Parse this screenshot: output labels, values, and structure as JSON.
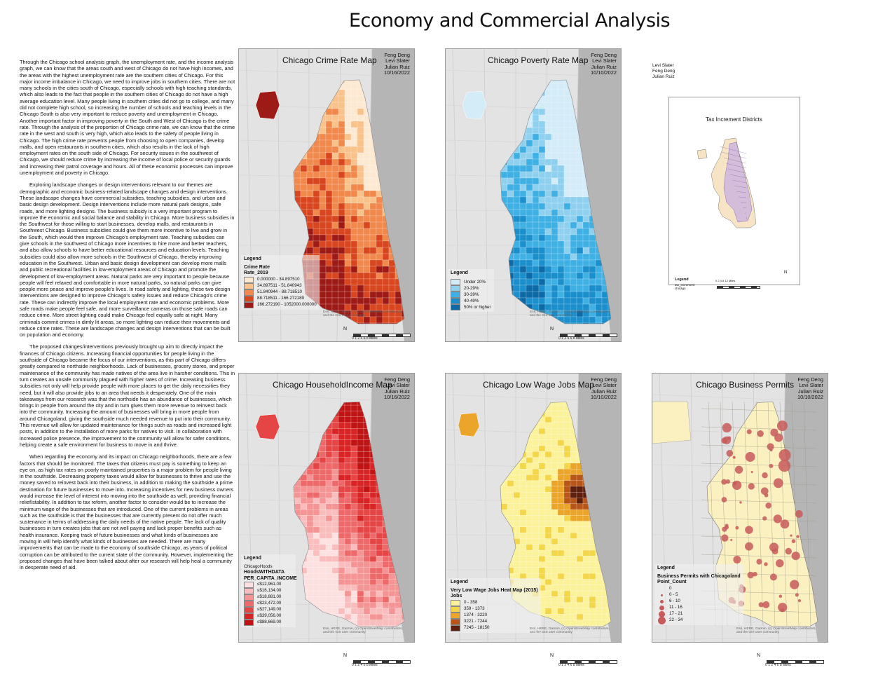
{
  "title": "Economy and Commercial Analysis",
  "essay": [
    "Through the Chicago school analysis graph, the unemployment rate, and the income analysis graph, we can know that the areas south and west of Chicago do not have high incomes, and the areas with the highest unemployment rate are the southern cities of Chicago. For this major income imbalance in Chicago, we need to improve jobs in southern cities. There are not many schools in the cities south of Chicago, especially schools with high teaching standards, which also leads to the fact that people in the southern cities of Chicago do not have a high average education level. Many people living in southern cities did not go to college, and many did not complete high school, so increasing the number of schools and teaching levels in the Chicago South is also very important to reduce poverty and unemployment in Chicago. Another important factor in improving poverty in the South and West of Chicago is the crime rate. Through the analysis of the proportion of Chicago crime rate, we can know that the crime rate in the west and south is very high, which also leads to the safety of people living in Chicago. The high crime rate prevents people from choosing to open companies, develop malls, and open restaurants in southern cities, which also results in the lack of high employment rates on the south side of Chicago. For security issues in the southwest of Chicago, we should reduce crime by increasing the income of local police or security guards and increasing their patrol coverage and hours. All of these economic processes can improve unemployment and poverty in Chicago.",
    "Exploring landscape changes or design interventions relevant to our themes are demographic and economic business-related landscape changes and design interventions. These landscape changes have commercial subsidies, teaching subsidies, and urban and basic design development. Design interventions include more natural park designs, safe roads, and more lighting designs. The business subsidy is a very important program to improve the economic and social balance and stability in Chicago. More business subsidies in the Southwest for those willing to start businesses, develop malls, and restaurants in Southwest Chicago. Business subsidies could give them more incentive to live and grow in the South, which would then improve Chicago's employment rate. Teaching subsidies can give schools in the southwest of Chicago more incentives to hire more and better teachers, and also allow schools to have better educational resources and education levels. Teaching subsidies could also allow more schools in the Southwest of Chicago, thereby improving education in the Southwest. Urban and basic design development can develop more malls and public recreational facilities in low-employment areas of Chicago and promote the development of low-employment areas. Natural parks are very important to people because people will feel relaxed and comfortable in more natural parks, so natural parks can give people more peace and improve people's lives. In road safety and lighting, these two design interventions are designed to improve Chicago's safety issues and reduce Chicago's crime rate. These can indirectly improve the local employment rate and economic problems. More safe roads make people feel safe, and more surveillance cameras on those safe roads can reduce crime. More street lighting could make Chicago feel equally safe at night. Many criminals commit crimes in dimly lit areas, so more lighting can reduce their movements and reduce crime rates. These are landscape changes and design interventions that can be built on population and economy.",
    "The proposed changes/interventions previously brought up aim to directly impact the finances of Chicago citizens. Increasing financial opportunities for people living in the southside of Chicago became the focus of our interventions, as this part of Chicago differs greatly compared to northside neighborhoods. Lack of businesses, grocery stores, and proper maintenance of the community has made natives of the area live in harsher conditions. This in turn creates an unsafe community plagued with higher rates of crime. Increasing business subsidies not only will help provide people with more places to get the daily necessities they need, but it will also provide jobs to an area that needs it desperately. One of the main takeaways from our research was that the northside has an abundance of businesses, which brings in people from around the city and in turn gives them more revenue to reinvest back into the community. Increasing the amount of businesses will bring in more people from around Chicagoland, giving the southside much needed revenue to put into their community. This revenue will allow for updated maintenance for things such as roads and increased light posts, in addition to the installation of more parks for natives to visit. In collaboration with increased police presence, the improvement to the community will allow for safer conditions, helping create a safe environment for business to move in and thrive.",
    "When regarding the economy and its impact on Chicago neighborhoods, there are a few factors that should be monitored. The taxes that citizens must pay is something to keep an eye on, as high tax rates on poorly maintained properties is a major problem for people living in the southside. Decreasing property taxes would allow for businesses to thrive and use the money saved to reinvest back into their business, in addition to making the southside a prime destination for future businesses to move into. Increasing incentives for new business owners would increase the level of interest into moving into the southside as well, providing financial relief/stability. In addition to tax reform, another factor to consider would be to increase the minimum wage of the businesses that are introduced. One of the current problems in areas such as the southside is that the businesses that are currently present do not offer much sustenance in terms of addressing the daily needs of the native people. The lack of quality businesses in turn creates jobs that are not well paying and lack proper benefits such as health insurance. Keeping track of future businesses and what kinds of businesses are moving in will help identify what kinds of businesses are needed. There are many improvements that can be made to the economy of southside Chicago, as years of political corruption can be attributed to the current state of the community. However, implementing the proposed changes that have been talked about after our research will help heal a community in desperate need of aid."
  ],
  "side_authors": [
    "Levi Slater",
    "Feng Deng",
    "Julian Ruiz"
  ],
  "maps": {
    "crime": {
      "title": "Chicago Crime Rate Map",
      "credits": [
        "Feng Deng",
        "Levi Slater",
        "Julian Ruiz",
        "10/16/2022"
      ],
      "legend_title": "Legend",
      "legend_subtitle": "Crime Rate",
      "legend_field": "Rate_2019",
      "classes": [
        {
          "label": "0.000000 - 34.897510",
          "color": "#fde9d2"
        },
        {
          "label": "34.897511 - 51.840943",
          "color": "#f9c28a"
        },
        {
          "label": "51.840944 - 88.718510",
          "color": "#f1894d"
        },
        {
          "label": "88.718511 - 166.272189",
          "color": "#d8461f"
        },
        {
          "label": "166.272190 - 1052000.000000",
          "color": "#9e1a16"
        }
      ],
      "attribution": "Esri, HERE, Garmin, (c) OpenStreetMap contributors, and the GIS user community"
    },
    "poverty": {
      "title": "Chicago Poverty Rate Map",
      "credits": [
        "Feng Deng",
        "Levi Slater",
        "Julian Ruiz",
        "10/10/2022"
      ],
      "legend_title": "Legend",
      "classes": [
        {
          "label": "Under 20%",
          "color": "#d3ecf8"
        },
        {
          "label": "20-29%",
          "color": "#8fd0ef"
        },
        {
          "label": "30-39%",
          "color": "#3fb0e3"
        },
        {
          "label": "40-49%",
          "color": "#1a8fcc"
        },
        {
          "label": "50% or higher",
          "color": "#0d6aa6"
        }
      ],
      "attribution": "Esri, HERE, Garmin, (c) OpenStreetMap contributors, and the GIS user community"
    },
    "tid": {
      "title": "Tax Increment Districts",
      "legend_title": "Legend",
      "classes": [
        {
          "label": "tax_increment",
          "color": "#c9b3e0"
        },
        {
          "label": "chicago",
          "color": "#f7e4c4"
        }
      ],
      "scale_labels": "0  2  4  8  12 Miles",
      "north": "N"
    },
    "income": {
      "title": "Chicago HouseholdIncome Map",
      "credits": [
        "Feng Deng",
        "Levi Slater",
        "Julian Ruiz",
        "10/16/2022"
      ],
      "legend_title": "Legend",
      "legend_subtitle": "ChicagoHoods",
      "legend_field": "HoodsWITHDATA PER_CAPITA_INCOME",
      "classes": [
        {
          "label": "≤$12,961.00",
          "color": "#fde0e0"
        },
        {
          "label": "≤$16,134.00",
          "color": "#f9bdbd"
        },
        {
          "label": "≤$18,881.00",
          "color": "#f49494"
        },
        {
          "label": "≤$23,472.00",
          "color": "#ee6a6a"
        },
        {
          "label": "≤$27,149.00",
          "color": "#e54545"
        },
        {
          "label": "≤$39,056.00",
          "color": "#d82424"
        },
        {
          "label": "≤$88,669.00",
          "color": "#c01414"
        }
      ],
      "attribution": "Esri, HERE, Garmin, (c) OpenStreetMap contributors, and the GIS user community"
    },
    "lowwage": {
      "title": "Chicago Low Wage Jobs Map",
      "credits": [
        "Feng Deng",
        "Levi Slater",
        "Julian Ruiz",
        "10/10/2022"
      ],
      "legend_title": "Legend",
      "legend_subtitle": "Very Low Wage Jobs Heat Map (2015)",
      "legend_field": "Jobs",
      "classes": [
        {
          "label": "0 - 358",
          "color": "#fbf29a"
        },
        {
          "label": "359 - 1373",
          "color": "#f4d64a"
        },
        {
          "label": "1374 - 3220",
          "color": "#eaa52a"
        },
        {
          "label": "3221 - 7244",
          "color": "#b8561a"
        },
        {
          "label": "7245 - 18150",
          "color": "#5e1f0f"
        }
      ],
      "attribution": "Esri, HERE, Garmin, (c) OpenStreetMap contributors, and the GIS user community"
    },
    "permits": {
      "title": "Chicago Business Permits",
      "credits": [
        "Feng Deng",
        "Levi Slater",
        "Julian Ruiz",
        "10/10/2022"
      ],
      "legend_title": "Legend",
      "legend_subtitle": "Business Permits with Chicagoland",
      "legend_field": "Point_Count",
      "classes": [
        "0",
        "0 - 5",
        "6 - 10",
        "11 - 16",
        "17 - 21",
        "22 - 34"
      ],
      "attribution": "Esri, HERE, Garmin, (c) OpenStreetMap contributors, and the GIS user community"
    }
  },
  "scalebar": {
    "north": "N",
    "labels": "0  1  2  4  6  8 Miles"
  },
  "colors": {
    "lake": "#b5b5b5",
    "basemap": "#e3e3e3",
    "permit_bubble": "#c75a5a",
    "permit_fill": "#faf0c0"
  }
}
